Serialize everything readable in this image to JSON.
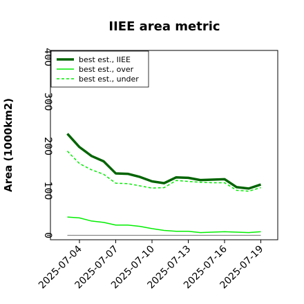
{
  "chart_data": {
    "type": "line",
    "title": "IIEE area metric",
    "xlabel": "",
    "ylabel": "Area (1000km2)",
    "ylim": [
      -10,
      415
    ],
    "yticks": [
      0,
      100,
      200,
      300,
      400
    ],
    "xticks": [
      "2025-07-04",
      "2025-07-07",
      "2025-07-10",
      "2025-07-13",
      "2025-07-16",
      "2025-07-19"
    ],
    "x": [
      "2025-07-03",
      "2025-07-04",
      "2025-07-05",
      "2025-07-06",
      "2025-07-07",
      "2025-07-08",
      "2025-07-09",
      "2025-07-10",
      "2025-07-11",
      "2025-07-12",
      "2025-07-13",
      "2025-07-14",
      "2025-07-15",
      "2025-07-16",
      "2025-07-17",
      "2025-07-18",
      "2025-07-19"
    ],
    "series": [
      {
        "name": "best est., IIEE",
        "color": "#006400",
        "style": "solid",
        "width": "thick",
        "values": [
          228,
          198,
          178,
          166,
          139,
          138,
          131,
          121,
          117,
          130,
          129,
          124,
          125,
          126,
          108,
          105,
          114
        ]
      },
      {
        "name": "best est., over",
        "color": "#00ee00",
        "style": "solid",
        "width": "thin",
        "values": [
          41,
          39,
          32,
          29,
          23,
          23,
          20,
          15,
          11,
          9,
          9,
          6,
          7,
          8,
          7,
          6,
          8
        ]
      },
      {
        "name": "best est., under",
        "color": "#00ee00",
        "style": "dashed",
        "width": "thin",
        "values": [
          189,
          161,
          147,
          137,
          117,
          116,
          111,
          106,
          107,
          123,
          121,
          119,
          118,
          118,
          101,
          99,
          107
        ]
      }
    ],
    "baseline": {
      "value": 0,
      "color": "#808080"
    },
    "legend": {
      "location": "top-left"
    },
    "grid": false
  }
}
